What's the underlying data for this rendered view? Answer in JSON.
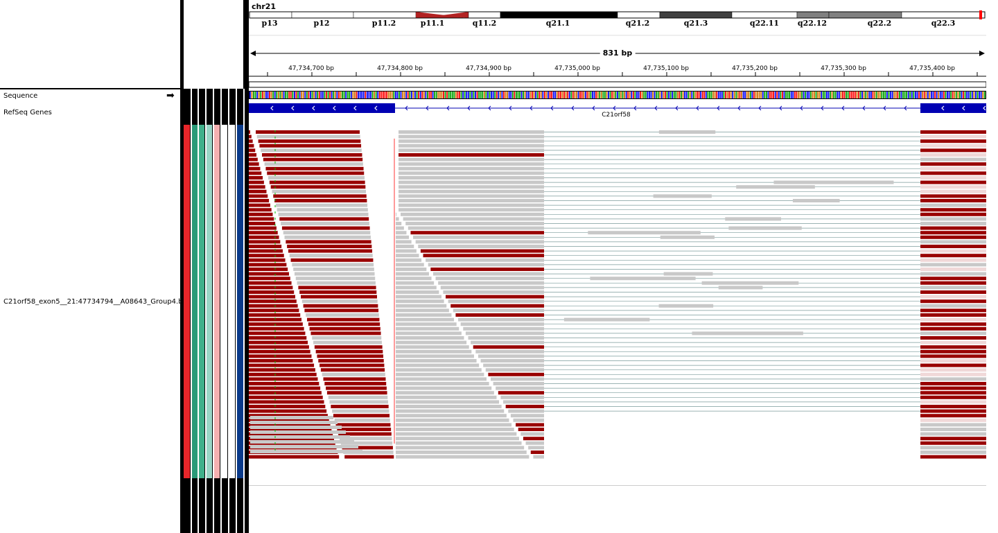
{
  "chromosome": {
    "name": "chr21",
    "bands": [
      {
        "label": "p13",
        "fill": "#ffffff"
      },
      {
        "label": "p12",
        "fill": "#ffffff"
      },
      {
        "label": "p11.2",
        "fill": "#ffffff"
      },
      {
        "label": "p11.1",
        "fill": "#b22222"
      },
      {
        "label": "q11.2",
        "fill": "#ffffff"
      },
      {
        "label": "q21.1",
        "fill": "#000000"
      },
      {
        "label": "q21.2",
        "fill": "#ffffff"
      },
      {
        "label": "q21.3",
        "fill": "#404040"
      },
      {
        "label": "q22.11",
        "fill": "#ffffff"
      },
      {
        "label": "q22.12",
        "fill": "#808080"
      },
      {
        "label": "q22.2",
        "fill": "#808080"
      },
      {
        "label": "q22.3",
        "fill": "#ffffff"
      }
    ]
  },
  "ruler": {
    "span": "831 bp",
    "ticks": [
      "47,734,700 bp",
      "47,734,800 bp",
      "47,734,900 bp",
      "47,735,000 bp",
      "47,735,100 bp",
      "47,735,200 bp",
      "47,735,300 bp",
      "47,735,400 bp"
    ]
  },
  "tracks": {
    "sequence": "Sequence",
    "refseq": "RefSeq Genes",
    "alignment": "C21orf58_exon5__21:47734794__A08643_Group4.ba"
  },
  "gene": {
    "name": "C21orf58",
    "strand": "minus",
    "exon_color": "#0000b3"
  },
  "colors": {
    "read_gray": "#c8c8c8",
    "read_red": "#990000",
    "read_pink": "#f0d8d8",
    "attr_colors": [
      "#e8262a",
      "#2a9a78",
      "#40b08a",
      "#9ad6c6",
      "#f5b0b0",
      "#ffffff",
      "#ffffff",
      "#0a3a8a"
    ]
  }
}
